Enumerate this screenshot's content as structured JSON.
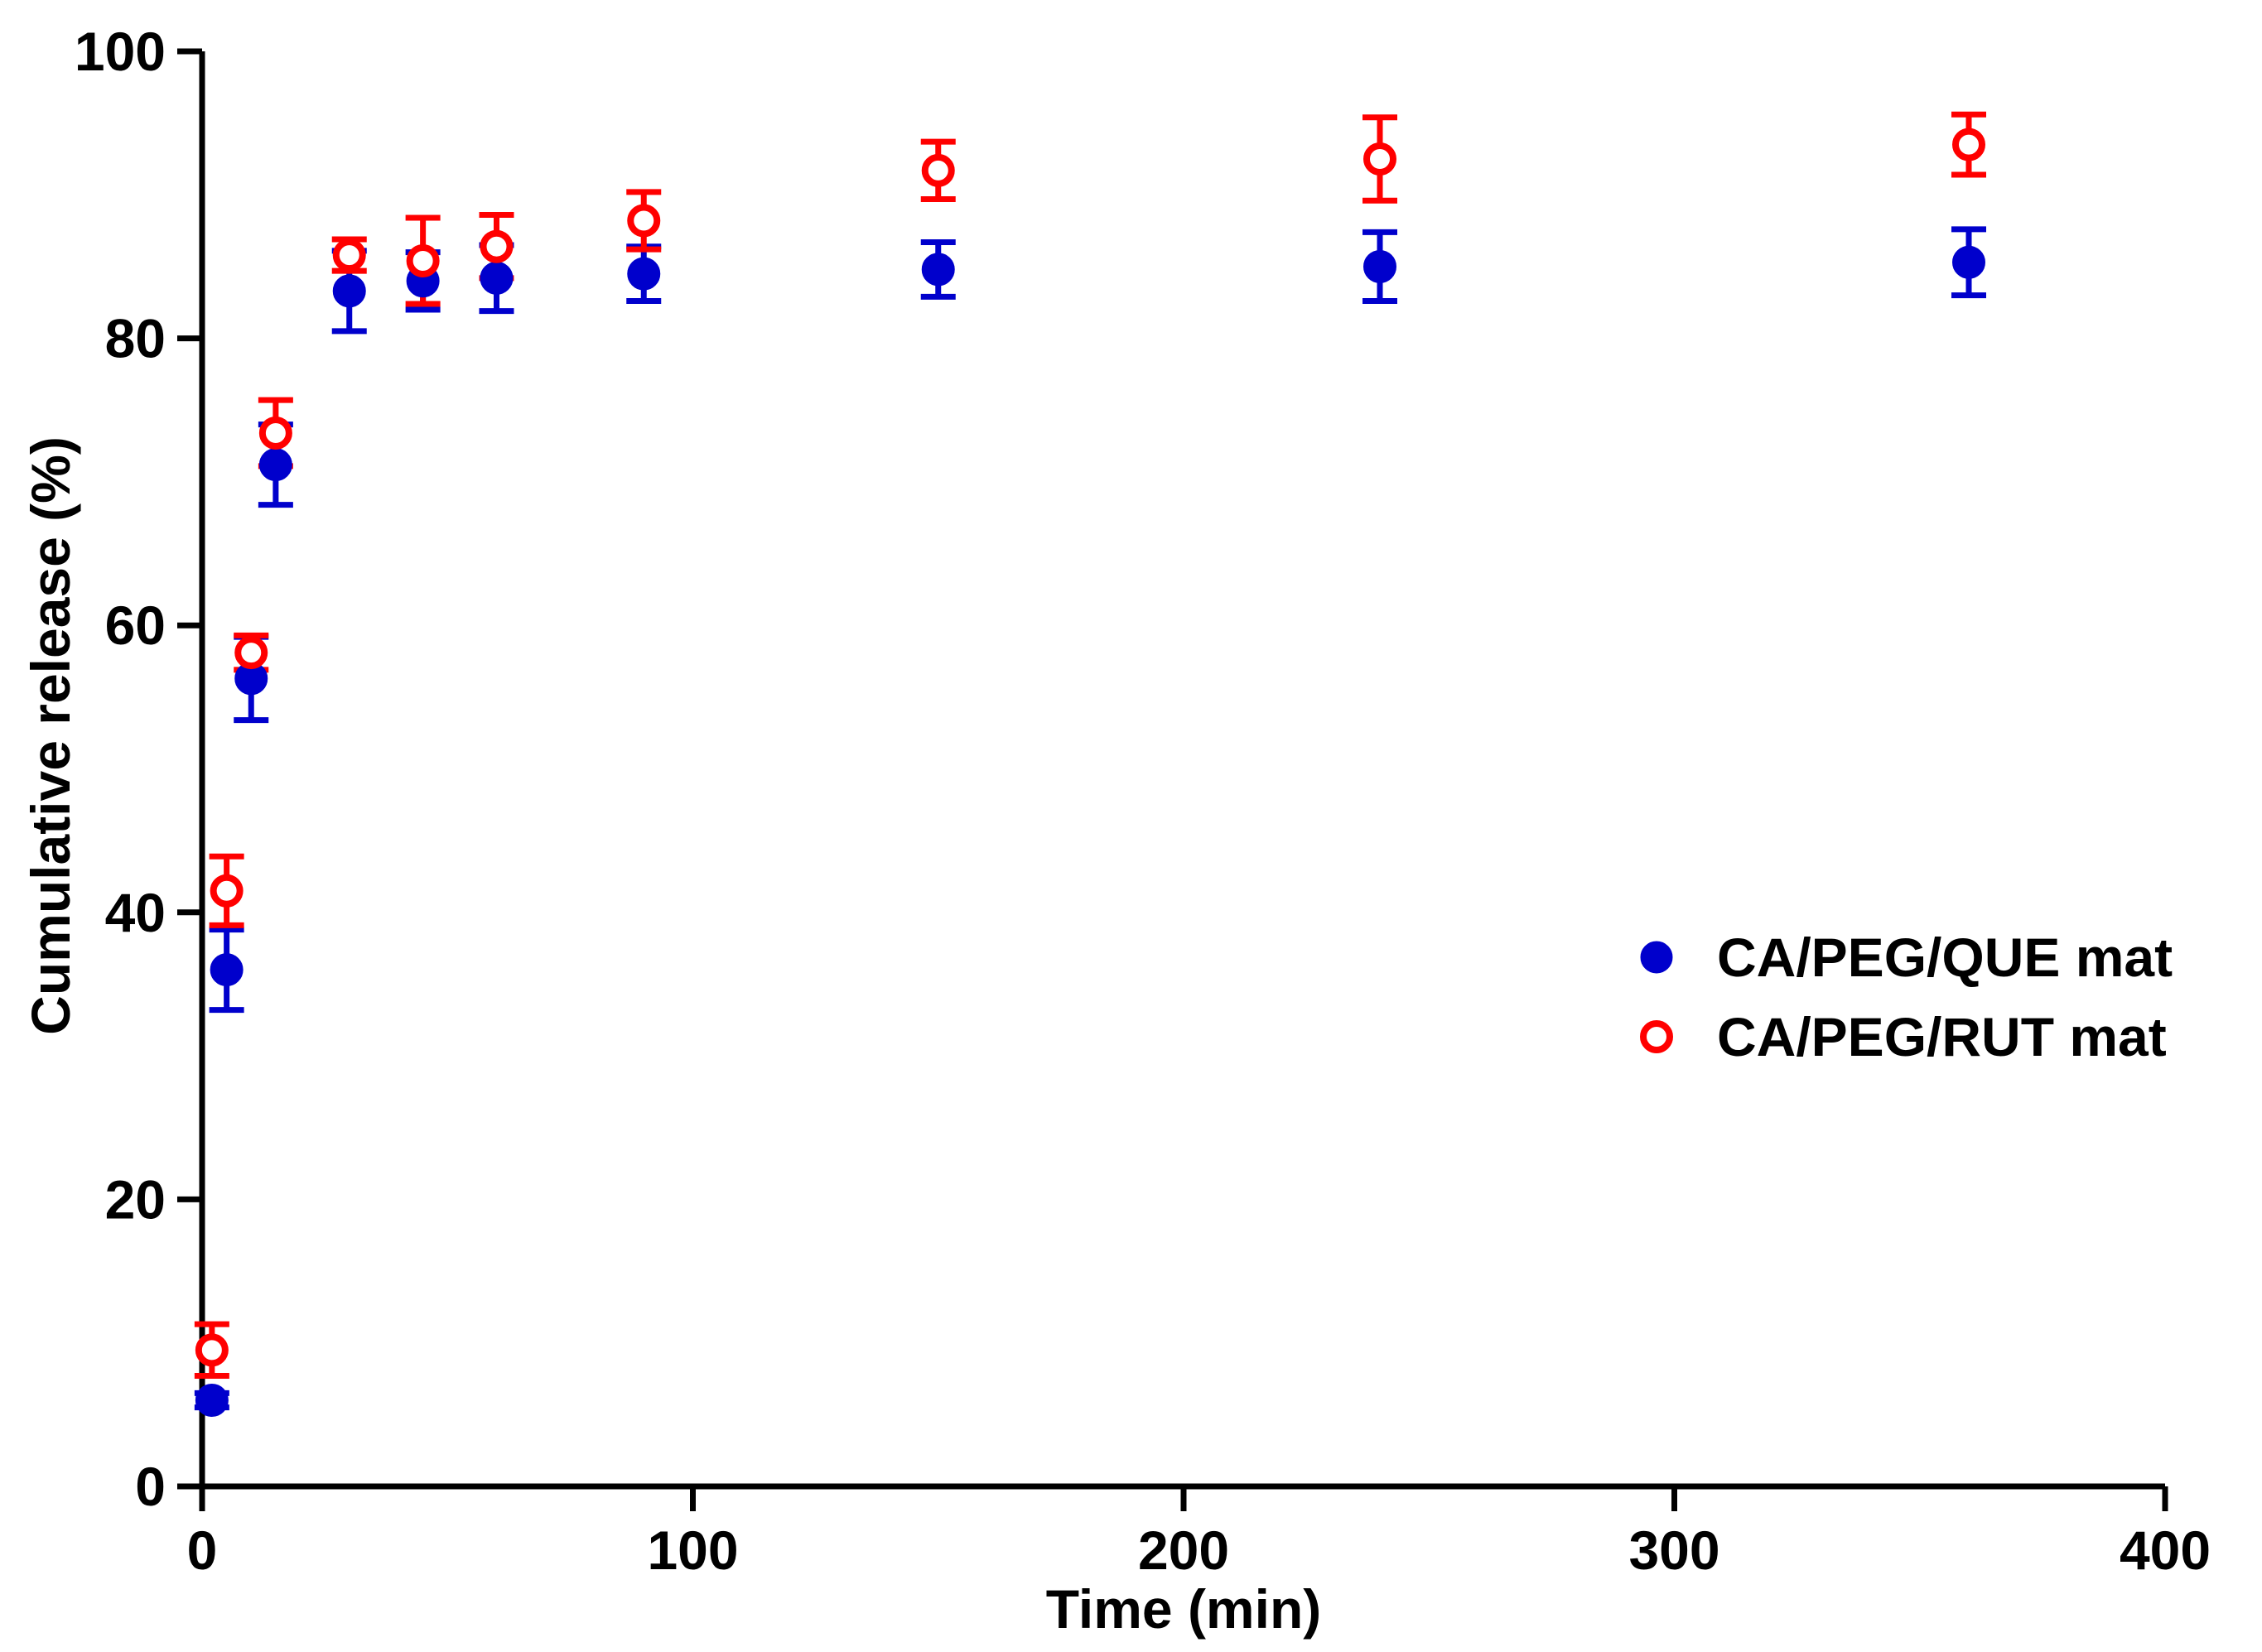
{
  "chart_data": {
    "type": "scatter",
    "title": "",
    "xlabel": "Time (min)",
    "ylabel": "Cumulative release (%)",
    "xlim": [
      0,
      400
    ],
    "ylim": [
      0,
      100
    ],
    "x_ticks": [
      0,
      100,
      200,
      300,
      400
    ],
    "y_ticks": [
      0,
      20,
      40,
      60,
      80,
      100
    ],
    "grid": false,
    "legend_position": "right",
    "series": [
      {
        "name": "CA/PEG/QUE mat",
        "marker": "filled-circle",
        "color": "#0000CC",
        "x": [
          2,
          5,
          10,
          15,
          30,
          45,
          60,
          90,
          150,
          240,
          360
        ],
        "y": [
          6,
          36,
          56.3,
          71.2,
          83.3,
          84,
          84.2,
          84.5,
          84.8,
          85,
          85.3
        ],
        "error": [
          0.5,
          2.8,
          2.9,
          2.8,
          2.8,
          2.0,
          2.3,
          1.9,
          1.9,
          2.4,
          2.3
        ]
      },
      {
        "name": "CA/PEG/RUT mat",
        "marker": "open-circle",
        "color": "#FF0000",
        "x": [
          2,
          5,
          10,
          15,
          30,
          45,
          60,
          90,
          150,
          240,
          360
        ],
        "y": [
          9.5,
          41.5,
          58.1,
          73.4,
          85.8,
          85.4,
          86.4,
          88.2,
          91.7,
          92.5,
          93.5
        ],
        "error": [
          1.8,
          2.4,
          1.2,
          2.3,
          1.1,
          3.0,
          2.2,
          2.0,
          2.0,
          2.9,
          2.1
        ]
      }
    ]
  }
}
